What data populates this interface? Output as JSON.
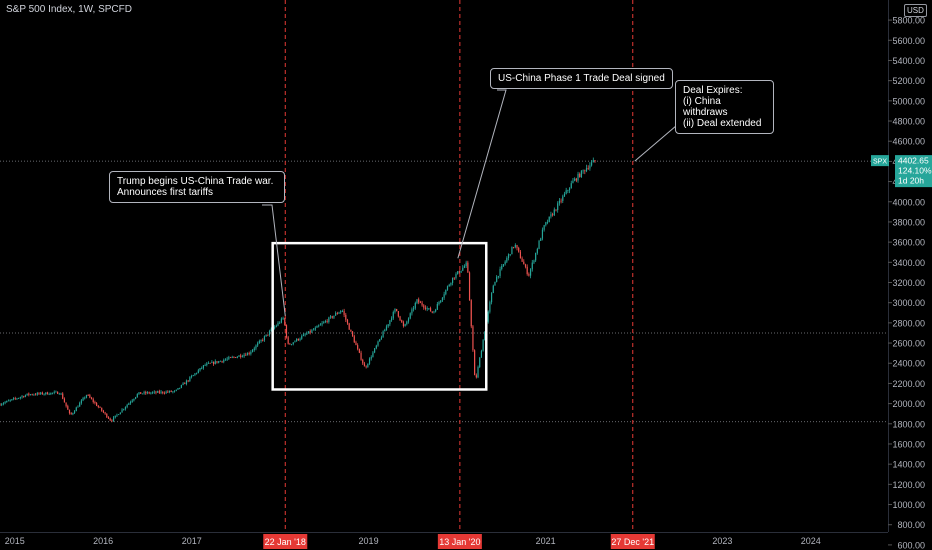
{
  "header": {
    "title": "S&P 500 Index, 1W, SPCFD",
    "currency": "USD"
  },
  "colors": {
    "up": "#26a69a",
    "down": "#ef5350",
    "event_line": "#e53935",
    "badge": "#26a69a",
    "box": "#ffffff",
    "background": "#000000"
  },
  "callouts": {
    "trade_war": "Trump begins US-China Trade war.\nAnnounces first tariffs",
    "phase1": "US-China Phase 1 Trade Deal signed",
    "expiry": "Deal Expires:\n(i) China withdraws\n(ii) Deal extended"
  },
  "price_badge": {
    "symbol": "SPX",
    "price": "4402.65",
    "change": "124.10%",
    "countdown": "1d 20h"
  },
  "chart_data": {
    "type": "candlestick",
    "title": "S&P 500 Index, 1W, SPCFD",
    "x_ticks": [
      "2015",
      "2016",
      "2017",
      "2018",
      "2019",
      "2020",
      "2021",
      "2022",
      "2023",
      "2024"
    ],
    "y_ticks": [
      600,
      800,
      1000,
      1200,
      1400,
      1600,
      1800,
      2000,
      2200,
      2400,
      2600,
      2800,
      3000,
      3200,
      3400,
      3600,
      3800,
      4000,
      4200,
      4400,
      4600,
      4800,
      5000,
      5200,
      5400,
      5600,
      5800
    ],
    "y_range": [
      500,
      5900
    ],
    "x_range": [
      "2014-11-01",
      "2024-11-15"
    ],
    "current_price": 4402.65,
    "event_markers": [
      {
        "label": "22 Jan '18",
        "date": "2018-01-22"
      },
      {
        "label": "13 Jan '20",
        "date": "2020-01-13"
      },
      {
        "label": "27 Dec '21",
        "date": "2021-12-27"
      }
    ],
    "horizontal_levels": [
      4402.65,
      2700,
      1820
    ],
    "highlight_box": {
      "x_start": "2017-12-01",
      "x_end": "2020-05-01",
      "y_low": 2140,
      "y_high": 3590
    },
    "price_path": [
      {
        "date": "2014-11-01",
        "close": 1990
      },
      {
        "date": "2015-03-01",
        "close": 2090
      },
      {
        "date": "2015-07-15",
        "close": 2110
      },
      {
        "date": "2015-08-25",
        "close": 1880
      },
      {
        "date": "2015-11-01",
        "close": 2090
      },
      {
        "date": "2016-02-10",
        "close": 1830
      },
      {
        "date": "2016-06-01",
        "close": 2100
      },
      {
        "date": "2016-11-01",
        "close": 2120
      },
      {
        "date": "2017-03-01",
        "close": 2380
      },
      {
        "date": "2017-09-01",
        "close": 2500
      },
      {
        "date": "2018-01-22",
        "close": 2850
      },
      {
        "date": "2018-02-09",
        "close": 2580
      },
      {
        "date": "2018-06-01",
        "close": 2740
      },
      {
        "date": "2018-09-20",
        "close": 2930
      },
      {
        "date": "2018-12-24",
        "close": 2350
      },
      {
        "date": "2019-04-30",
        "close": 2940
      },
      {
        "date": "2019-06-03",
        "close": 2750
      },
      {
        "date": "2019-07-26",
        "close": 3020
      },
      {
        "date": "2019-10-01",
        "close": 2900
      },
      {
        "date": "2019-12-20",
        "close": 3240
      },
      {
        "date": "2020-02-19",
        "close": 3390
      },
      {
        "date": "2020-03-23",
        "close": 2200
      },
      {
        "date": "2020-06-08",
        "close": 3200
      },
      {
        "date": "2020-09-02",
        "close": 3580
      },
      {
        "date": "2020-10-30",
        "close": 3270
      },
      {
        "date": "2021-01-01",
        "close": 3750
      },
      {
        "date": "2021-05-01",
        "close": 4200
      },
      {
        "date": "2021-07-01",
        "close": 4350
      },
      {
        "date": "2021-07-30",
        "close": 4402.65
      }
    ]
  }
}
